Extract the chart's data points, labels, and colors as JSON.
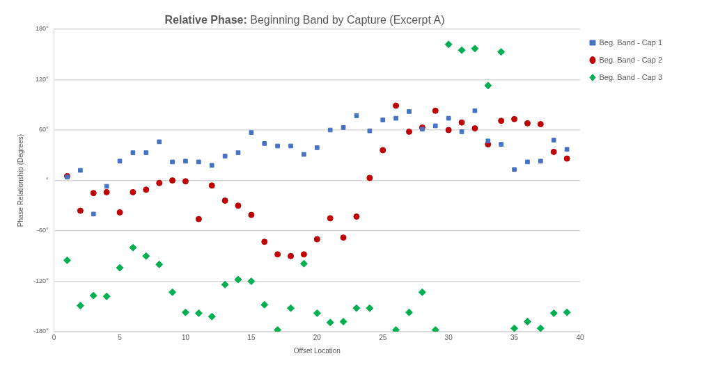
{
  "chart_data": {
    "type": "scatter",
    "title": "Relative Phase: Beginning Band by Capture (Excerpt A)",
    "xlabel": "Offset Location",
    "ylabel": "Phase Relationship (Degrees)",
    "x": [
      1,
      2,
      3,
      4,
      5,
      6,
      7,
      8,
      9,
      10,
      11,
      12,
      13,
      14,
      15,
      16,
      17,
      18,
      19,
      20,
      21,
      22,
      23,
      24,
      25,
      26,
      27,
      28,
      29,
      30,
      31,
      32,
      33,
      34,
      35,
      36,
      37,
      38,
      39
    ],
    "xlim": [
      0,
      40
    ],
    "xticks": [
      0,
      5,
      10,
      15,
      20,
      25,
      30,
      35,
      40
    ],
    "ylim": [
      -180,
      180
    ],
    "yticks": [
      {
        "value": -180,
        "label": "-180°"
      },
      {
        "value": -120,
        "label": "-120°"
      },
      {
        "value": -60,
        "label": "-60°"
      },
      {
        "value": 0,
        "label": "°"
      },
      {
        "value": 60,
        "label": "60°"
      },
      {
        "value": 120,
        "label": "120°"
      },
      {
        "value": 180,
        "label": "180°"
      }
    ],
    "grid": "y",
    "legend": "right",
    "series": [
      {
        "name": "Beg. Band - Cap 1",
        "color": "#4472c4",
        "marker": "square",
        "values": [
          4,
          12,
          -40,
          -7,
          23,
          33,
          33,
          46,
          22,
          23,
          22,
          18,
          29,
          33,
          57,
          44,
          41,
          41,
          31,
          39,
          60,
          63,
          77,
          59,
          72,
          74,
          82,
          61,
          65,
          74,
          58,
          83,
          47,
          43,
          13,
          22,
          23,
          48,
          37
        ]
      },
      {
        "name": "Beg. Band - Cap 2",
        "color": "#c00000",
        "marker": "circle",
        "values": [
          5,
          -36,
          -15,
          -14,
          -38,
          -14,
          -11,
          -3,
          0,
          -1,
          -46,
          -6,
          -24,
          -30,
          -41,
          -73,
          -88,
          -90,
          -88,
          -70,
          -45,
          -68,
          -43,
          3,
          36,
          89,
          58,
          63,
          83,
          60,
          69,
          62,
          43,
          71,
          73,
          68,
          67,
          34,
          26
        ]
      },
      {
        "name": "Beg. Band - Cap 3",
        "color": "#00b050",
        "marker": "diamond",
        "values": [
          -95,
          -149,
          -137,
          -138,
          -104,
          -80,
          -90,
          -100,
          -133,
          -157,
          -158,
          -162,
          -124,
          -118,
          -120,
          -148,
          -178,
          -152,
          -99,
          -158,
          -169,
          -168,
          -152,
          -152,
          null,
          -178,
          -157,
          -133,
          -178,
          162,
          155,
          157,
          113,
          153,
          -176,
          -168,
          -176,
          -158,
          -157
        ]
      }
    ]
  }
}
